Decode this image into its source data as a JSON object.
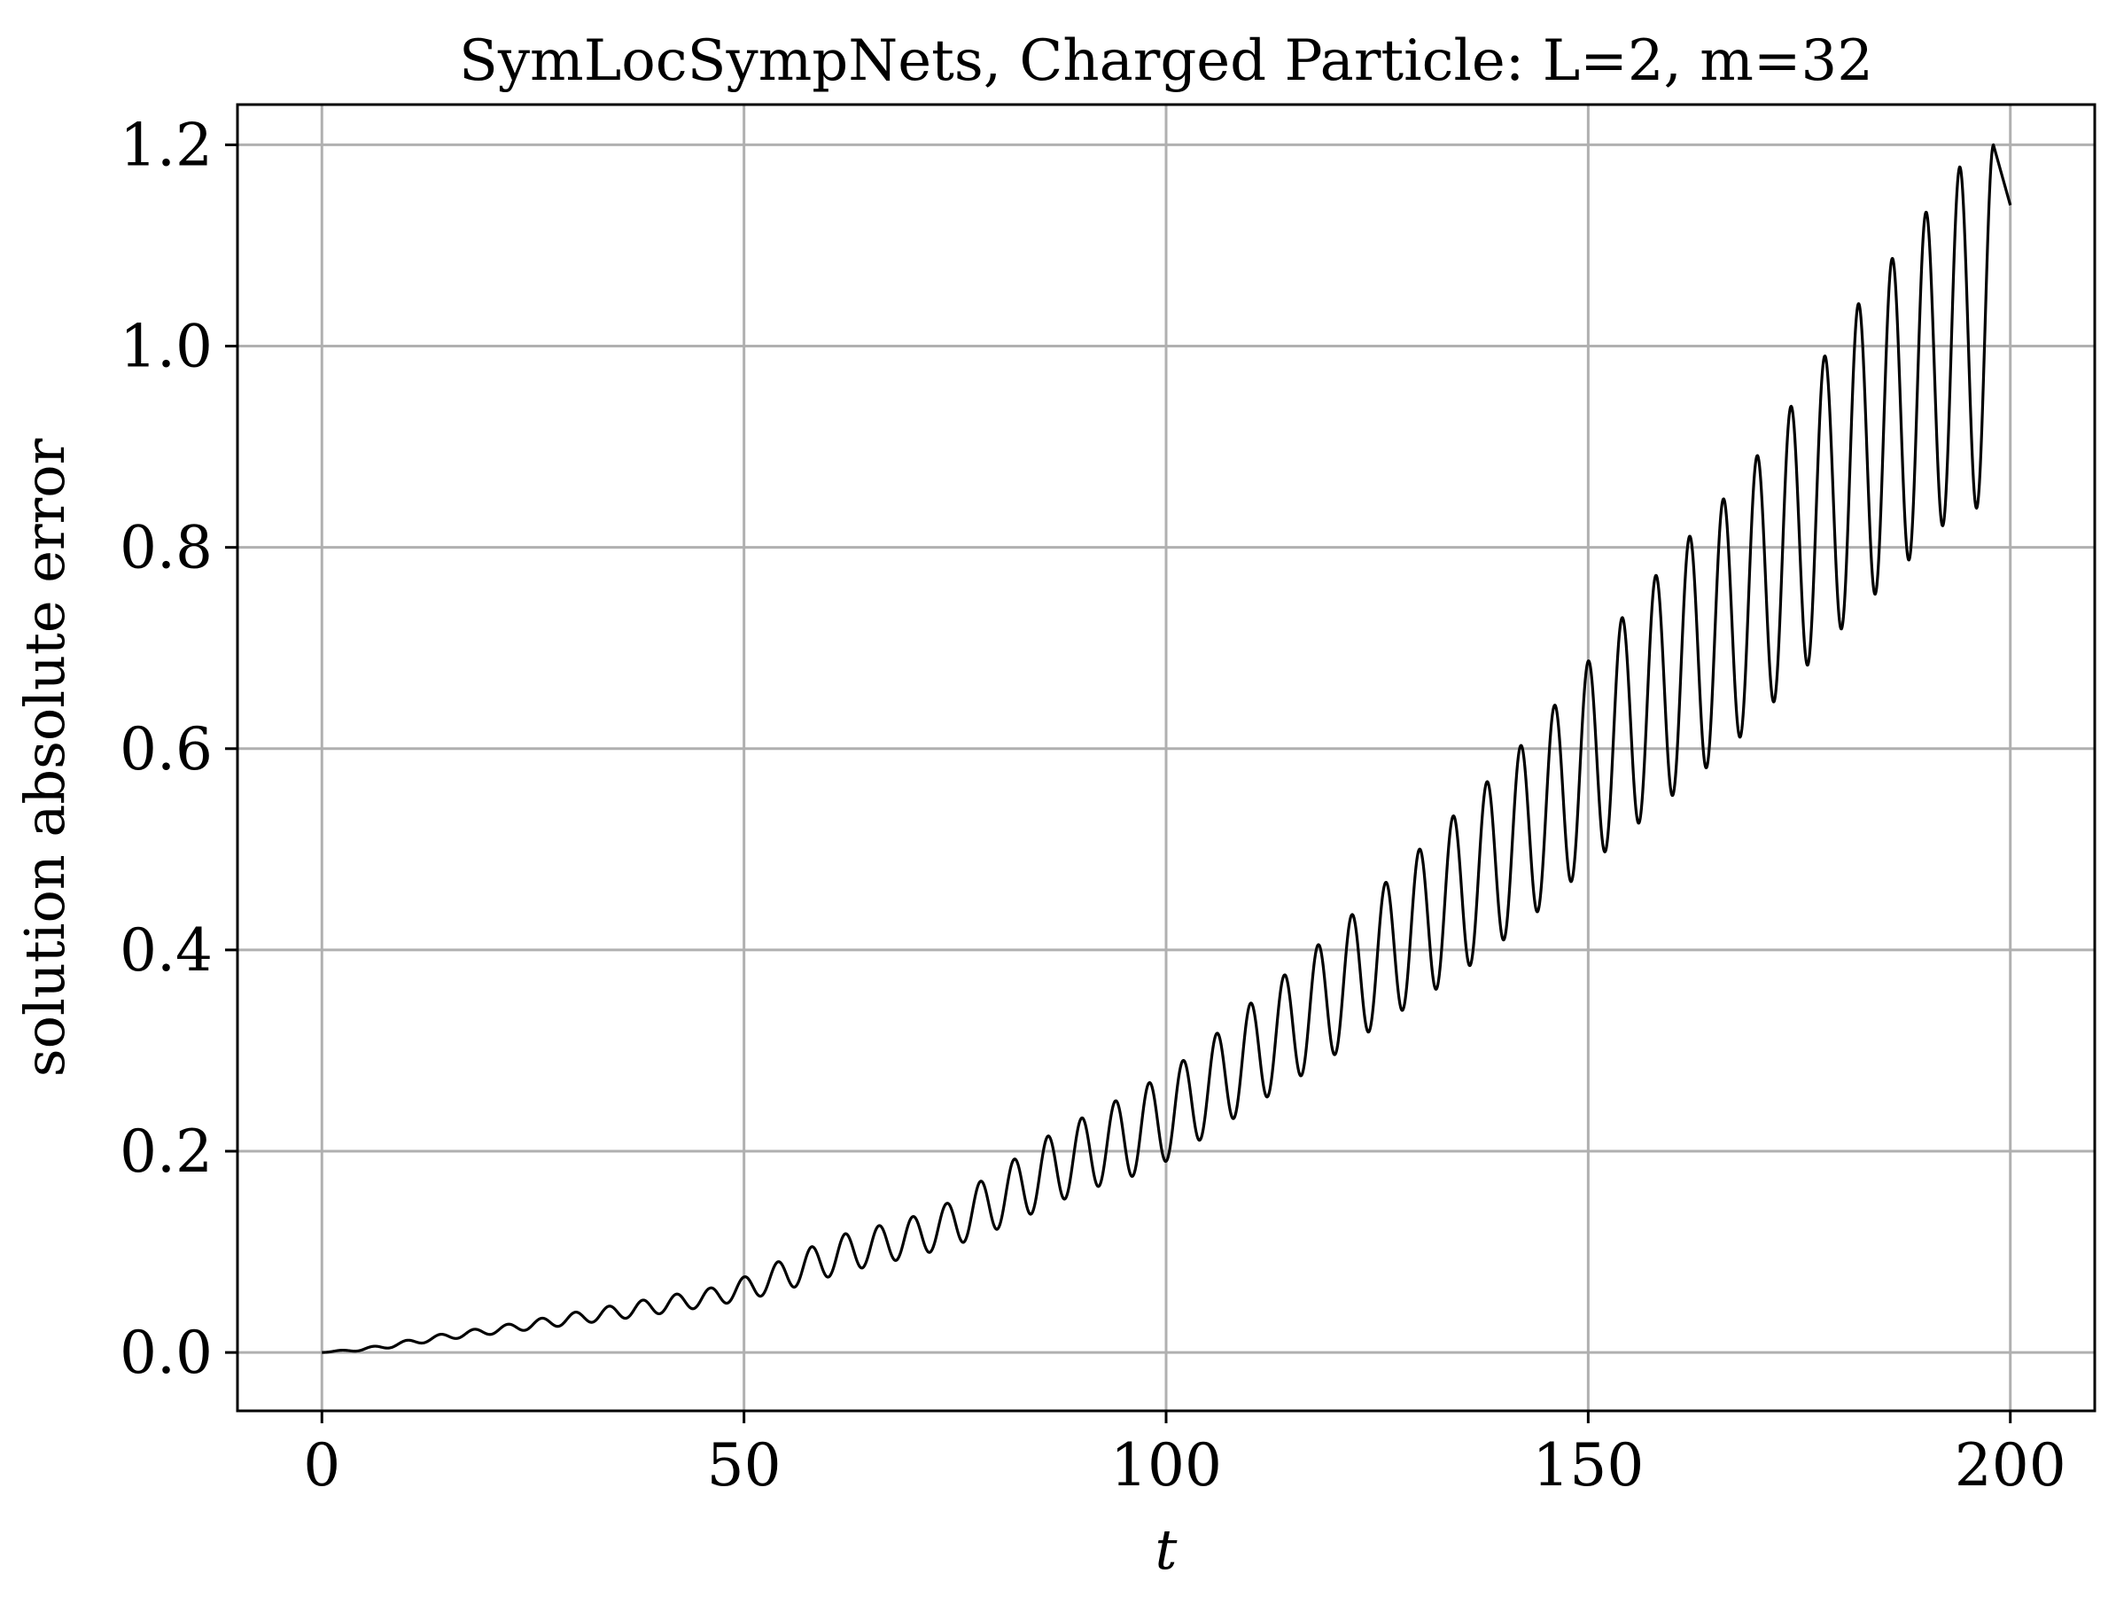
{
  "chart_data": {
    "type": "line",
    "title": "SymLocSympNets, Charged Particle: L=2, m=32",
    "xlabel": "t",
    "ylabel": "solution absolute error",
    "xlim": [
      -10,
      210
    ],
    "ylim": [
      -0.058,
      1.24
    ],
    "xticks": [
      0,
      50,
      100,
      150,
      200
    ],
    "yticks": [
      0.0,
      0.2,
      0.4,
      0.6,
      0.8,
      1.0,
      1.2
    ],
    "xtick_labels": [
      "0",
      "50",
      "100",
      "150",
      "200"
    ],
    "ytick_labels": [
      "0.0",
      "0.2",
      "0.4",
      "0.6",
      "0.8",
      "1.0",
      "1.2"
    ],
    "grid": true,
    "colors": {
      "line": "#000000",
      "grid": "#b0b0b0",
      "axes": "#000000"
    },
    "series": [
      {
        "upper_envelope": {
          "t": [
            0,
            6,
            14,
            22,
            30,
            38,
            46,
            50,
            54,
            58,
            62,
            66,
            70,
            74,
            78,
            82,
            86,
            90,
            94,
            98,
            102,
            106,
            110,
            114,
            118,
            122,
            126,
            130,
            134,
            138,
            142,
            146,
            150,
            154,
            158,
            162,
            166,
            170,
            174,
            178,
            182,
            186,
            190,
            194,
            198
          ],
          "value": [
            0.0,
            0.006,
            0.018,
            0.028,
            0.04,
            0.052,
            0.064,
            0.075,
            0.09,
            0.105,
            0.118,
            0.126,
            0.135,
            0.148,
            0.17,
            0.192,
            0.215,
            0.233,
            0.25,
            0.268,
            0.29,
            0.317,
            0.347,
            0.375,
            0.405,
            0.435,
            0.467,
            0.5,
            0.533,
            0.567,
            0.603,
            0.643,
            0.687,
            0.73,
            0.772,
            0.811,
            0.848,
            0.891,
            0.94,
            0.99,
            1.042,
            1.087,
            1.133,
            1.178,
            1.2
          ]
        },
        "lower_envelope": {
          "t": [
            0,
            6,
            14,
            22,
            30,
            38,
            46,
            50,
            54,
            58,
            62,
            66,
            70,
            74,
            78,
            82,
            86,
            90,
            94,
            98,
            102,
            106,
            110,
            114,
            118,
            122,
            126,
            130,
            134,
            138,
            142,
            146,
            150,
            154,
            158,
            162,
            166,
            170,
            174,
            178,
            182,
            186,
            190,
            194,
            198
          ],
          "value": [
            0.0,
            0.002,
            0.012,
            0.02,
            0.028,
            0.036,
            0.046,
            0.052,
            0.06,
            0.07,
            0.08,
            0.088,
            0.095,
            0.104,
            0.115,
            0.13,
            0.145,
            0.16,
            0.17,
            0.18,
            0.2,
            0.222,
            0.243,
            0.265,
            0.285,
            0.307,
            0.33,
            0.35,
            0.372,
            0.397,
            0.423,
            0.453,
            0.483,
            0.512,
            0.54,
            0.567,
            0.595,
            0.628,
            0.665,
            0.701,
            0.737,
            0.77,
            0.805,
            0.838,
            0.84
          ]
        },
        "oscillation_period": 4.0,
        "t_end": 200,
        "value_end": 1.14
      }
    ]
  }
}
